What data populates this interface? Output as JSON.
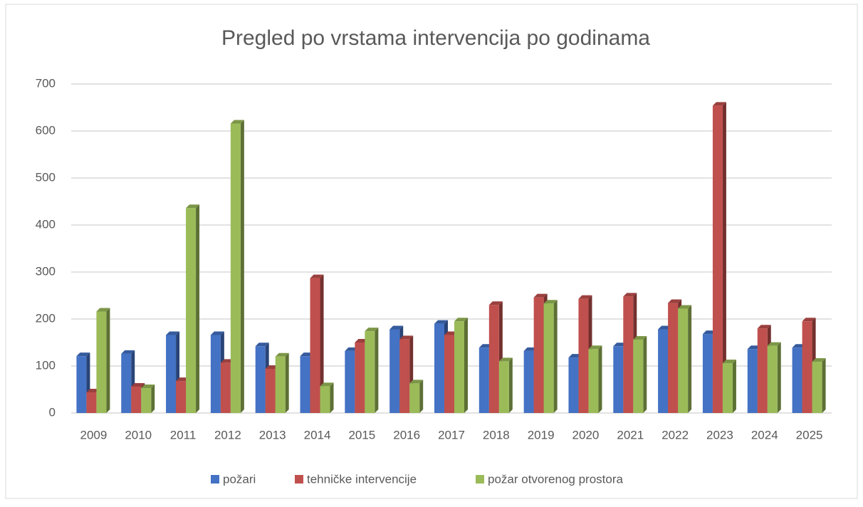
{
  "chart_data": {
    "type": "bar",
    "title": "Pregled po vrstama intervencija po godinama",
    "categories": [
      "2009",
      "2010",
      "2011",
      "2012",
      "2013",
      "2014",
      "2015",
      "2016",
      "2017",
      "2018",
      "2019",
      "2020",
      "2021",
      "2022",
      "2023",
      "2024",
      "2025"
    ],
    "series": [
      {
        "name": "požari",
        "color": "#4472c4",
        "values": [
          121,
          126,
          166,
          166,
          142,
          121,
          132,
          178,
          190,
          139,
          132,
          118,
          142,
          178,
          168,
          136,
          139
        ]
      },
      {
        "name": "tehničke intervencije",
        "color": "#c0504d",
        "values": [
          44,
          56,
          68,
          107,
          94,
          287,
          150,
          157,
          166,
          230,
          246,
          243,
          248,
          234,
          654,
          180,
          195
        ]
      },
      {
        "name": "požar otvorenog prostora",
        "color": "#9bbb59",
        "values": [
          216,
          53,
          436,
          616,
          120,
          57,
          174,
          63,
          195,
          110,
          233,
          136,
          156,
          222,
          106,
          143,
          109
        ]
      }
    ],
    "ylim": [
      0,
      700
    ],
    "yticks": [
      0,
      100,
      200,
      300,
      400,
      500,
      600,
      700
    ],
    "grid": true,
    "legend": "bottom"
  }
}
